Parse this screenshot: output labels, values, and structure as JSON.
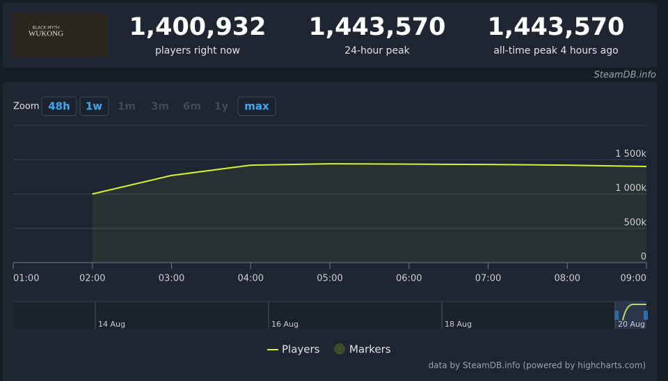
{
  "game": {
    "logo_small": "BLACK MYTH",
    "logo": "WUKONG"
  },
  "stats": [
    {
      "value": "1,400,932",
      "label": "players right now"
    },
    {
      "value": "1,443,570",
      "label": "24-hour peak"
    },
    {
      "value": "1,443,570",
      "label": "all-time peak 4 hours ago"
    }
  ],
  "source": "SteamDB.info",
  "zoom": {
    "label": "Zoom",
    "options": [
      "48h",
      "1w",
      "1m",
      "3m",
      "6m",
      "1y",
      "max"
    ]
  },
  "chart_data": {
    "type": "line",
    "categories": [
      "01:00",
      "02:00",
      "03:00",
      "04:00",
      "05:00",
      "06:00",
      "07:00",
      "08:00",
      "09:00"
    ],
    "series": [
      {
        "name": "Players",
        "color": "#d2f53c",
        "values": [
          null,
          1000000,
          1270000,
          1420000,
          1440000,
          1435000,
          1430000,
          1420000,
          1400932
        ]
      }
    ],
    "markers_legend": {
      "name": "Markers",
      "color": "#3f4d2b"
    },
    "ylim": [
      0,
      2000000
    ],
    "yticks": [
      0,
      {
        "value": 500000,
        "label": "500k"
      },
      {
        "value": 1000000,
        "label": "1 000k"
      },
      {
        "value": 1500000,
        "label": "1 500k"
      }
    ],
    "grid": true,
    "navigator_labels": [
      "14 Aug",
      "16 Aug",
      "18 Aug",
      "20 Aug"
    ],
    "credits": "data by SteamDB.info (powered by highcharts.com)"
  }
}
